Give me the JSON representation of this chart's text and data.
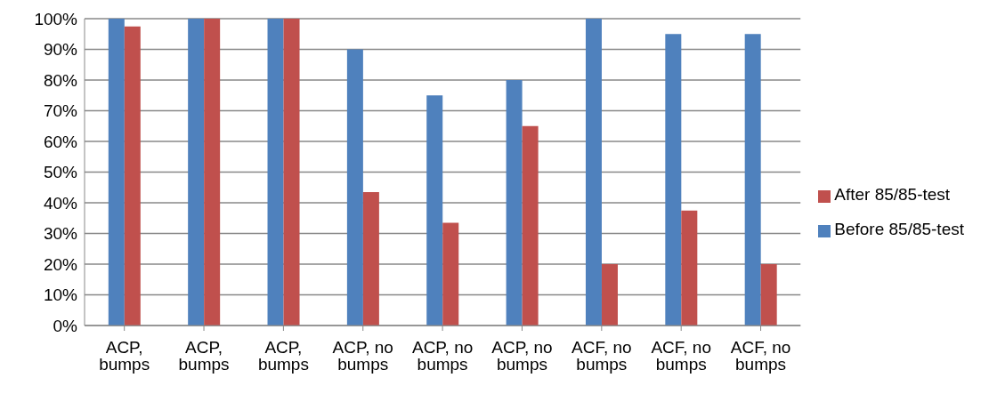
{
  "chart_data": {
    "type": "bar",
    "categories": [
      "ACP, bumps",
      "ACP, bumps",
      "ACP, bumps",
      "ACP, no bumps",
      "ACP, no bumps",
      "ACP, no bumps",
      "ACF, no bumps",
      "ACF, no bumps",
      "ACF, no bumps"
    ],
    "series": [
      {
        "name": "Before 85/85-test",
        "color": "#4f81bd",
        "values": [
          100,
          100,
          100,
          90,
          75,
          80,
          100,
          95,
          95
        ]
      },
      {
        "name": "After 85/85-test",
        "color": "#c0504d",
        "values": [
          97.5,
          100,
          100,
          43.5,
          33.5,
          65,
          20,
          37.5,
          20
        ]
      }
    ],
    "ylim": [
      0,
      100
    ],
    "yticks": [
      {
        "value": 0,
        "label": "0%"
      },
      {
        "value": 10,
        "label": "10%"
      },
      {
        "value": 20,
        "label": "20%"
      },
      {
        "value": 30,
        "label": "30%"
      },
      {
        "value": 40,
        "label": "40%"
      },
      {
        "value": 50,
        "label": "50%"
      },
      {
        "value": 60,
        "label": "60%"
      },
      {
        "value": 70,
        "label": "70%"
      },
      {
        "value": 80,
        "label": "80%"
      },
      {
        "value": 90,
        "label": "90%"
      },
      {
        "value": 100,
        "label": "100%"
      }
    ],
    "grid": "y",
    "legend": "right"
  }
}
